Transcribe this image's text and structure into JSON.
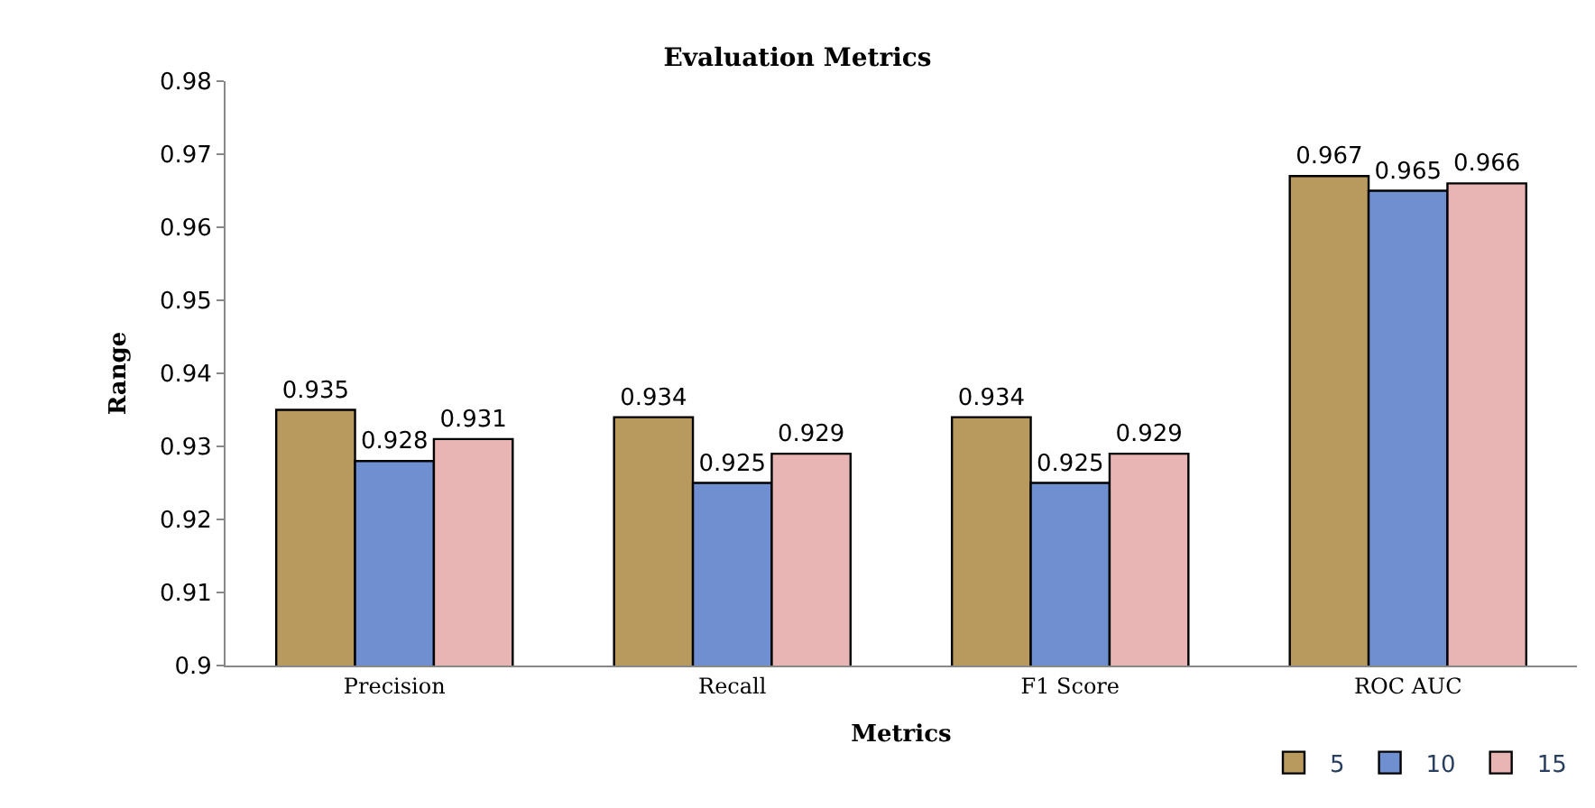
{
  "chart_data": {
    "type": "bar",
    "title": "Evaluation Metrics",
    "xlabel": "Metrics",
    "ylabel": "Range",
    "categories": [
      "Precision",
      "Recall",
      "F1 Score",
      "ROC AUC"
    ],
    "series": [
      {
        "name": "5",
        "color": "#b89a5e",
        "values": [
          0.935,
          0.934,
          0.934,
          0.967
        ]
      },
      {
        "name": "10",
        "color": "#6f8fd0",
        "values": [
          0.928,
          0.925,
          0.925,
          0.965
        ]
      },
      {
        "name": "15",
        "color": "#e8b4b4",
        "values": [
          0.931,
          0.929,
          0.929,
          0.966
        ]
      }
    ],
    "ylim": [
      0.9,
      0.98
    ],
    "yticks": [
      0.9,
      0.91,
      0.92,
      0.93,
      0.94,
      0.95,
      0.96,
      0.97,
      0.98
    ],
    "data_labels": true,
    "grid": false,
    "legend": "bottom right"
  }
}
